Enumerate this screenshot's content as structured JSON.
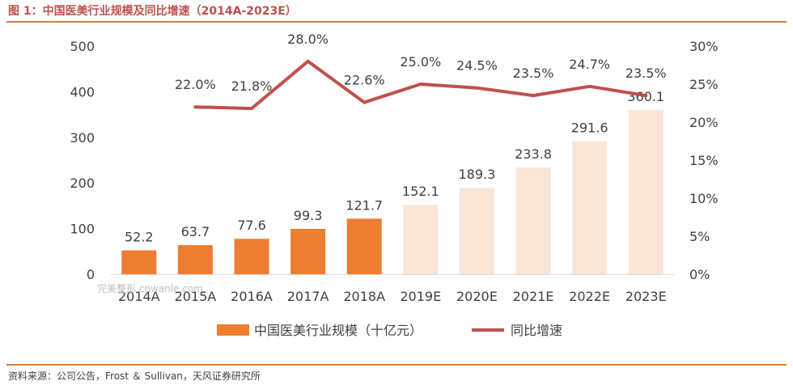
{
  "header": {
    "title": "图 1：中国医美行业规模及同比增速（2014A-2023E）"
  },
  "footer": {
    "source": "资料来源：公司公告，Frost ＆ Sullivan，天风证券研究所"
  },
  "watermark": "完美整形 cnwanle.com",
  "colors": {
    "actual": "#ed7d31",
    "estimate": "#fbe5d6",
    "line": "#c0504d",
    "accent": "#e07b39"
  },
  "chart_data": {
    "type": "bar",
    "categories": [
      "2014A",
      "2015A",
      "2016A",
      "2017A",
      "2018A",
      "2019E",
      "2020E",
      "2021E",
      "2022E",
      "2023E"
    ],
    "series": [
      {
        "name": "中国医美行业规模（十亿元）",
        "type": "bar",
        "axis": "left",
        "values": [
          52.2,
          63.7,
          77.6,
          99.3,
          121.7,
          152.1,
          189.3,
          233.8,
          291.6,
          360.1
        ],
        "labels": [
          "52.2",
          "63.7",
          "77.6",
          "99.3",
          "121.7",
          "152.1",
          "189.3",
          "233.8",
          "291.6",
          "360.1"
        ]
      },
      {
        "name": "同比增速",
        "type": "line",
        "axis": "right",
        "values": [
          null,
          22.0,
          21.8,
          28.0,
          22.6,
          25.0,
          24.5,
          23.5,
          24.7,
          23.5
        ],
        "labels": [
          "",
          "22.0%",
          "21.8%",
          "28.0%",
          "22.6%",
          "25.0%",
          "24.5%",
          "23.5%",
          "24.7%",
          "23.5%"
        ]
      }
    ],
    "estimate_categories": [
      "2019E",
      "2020E",
      "2021E",
      "2022E",
      "2023E"
    ],
    "y_left": {
      "ylim": [
        0,
        500
      ],
      "ticks": [
        "0",
        "100",
        "200",
        "300",
        "400",
        "500"
      ]
    },
    "y_right": {
      "ylim": [
        0,
        30
      ],
      "ticks": [
        "0%",
        "5%",
        "10%",
        "15%",
        "20%",
        "25%",
        "30%"
      ]
    },
    "legend": {
      "position": "bottom"
    },
    "grid": false
  }
}
